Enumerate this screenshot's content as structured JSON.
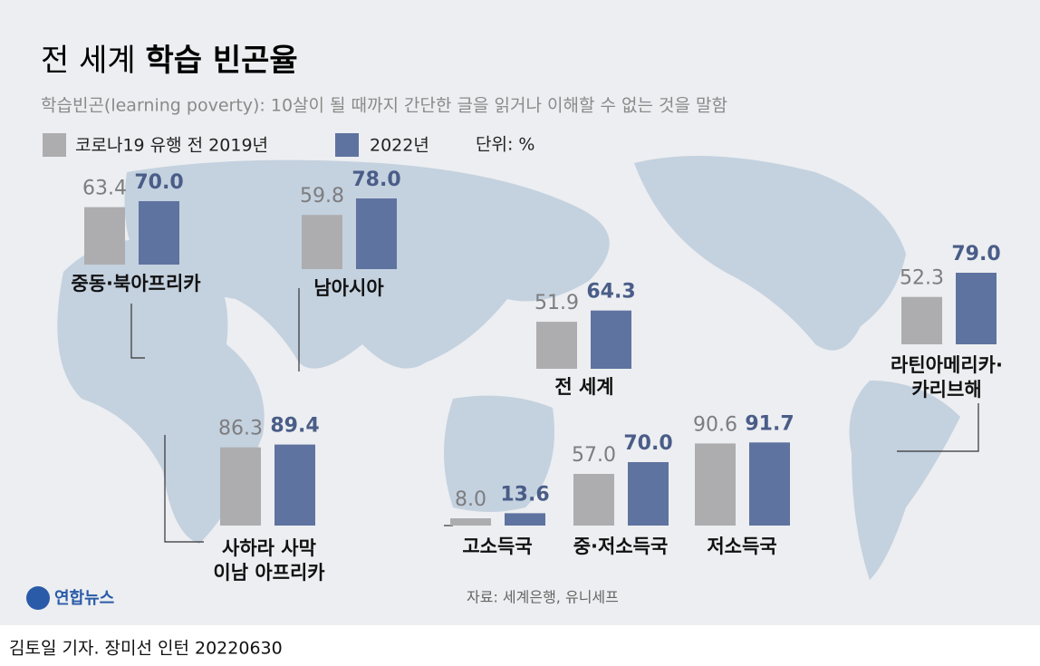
{
  "title_light": "전 세계",
  "title_bold": "학습 빈곤율",
  "subtitle": "학습빈곤(learning poverty): 10살이 될 때까지 간단한 글을 읽거나 이해할 수 없는 것을 말함",
  "unit": "단위: %",
  "source": "자료: 세계은행, 유니세프",
  "logo": "연합뉴스",
  "credit": "김토일 기자. 장미선 인턴  20220630",
  "chart_data": {
    "type": "bar",
    "categories": [
      "중동·북아프리카",
      "남아시아",
      "전 세계",
      "라틴아메리카·\n카리브해",
      "사하라 사막\n이남 아프리카",
      "고소득국",
      "중·저소득국",
      "저소득국"
    ],
    "series": [
      {
        "name": "코로나19 유행 전 2019년",
        "color": "#adadaf",
        "values": [
          63.4,
          59.8,
          51.9,
          52.3,
          86.3,
          8.0,
          57.0,
          90.6
        ],
        "value_labels": [
          "63.4",
          "59.8",
          "51.9",
          "52.3",
          "86.3",
          "8.0",
          "57.0",
          "90.6"
        ]
      },
      {
        "name": "2022년",
        "color": "#5f73a0",
        "values": [
          70.0,
          78.0,
          64.3,
          79.0,
          89.4,
          13.6,
          70.0,
          91.7
        ],
        "value_labels": [
          "70.0",
          "78.0",
          "64.3",
          "79.0",
          "89.4",
          "13.6",
          "70.0",
          "91.7"
        ]
      }
    ]
  }
}
